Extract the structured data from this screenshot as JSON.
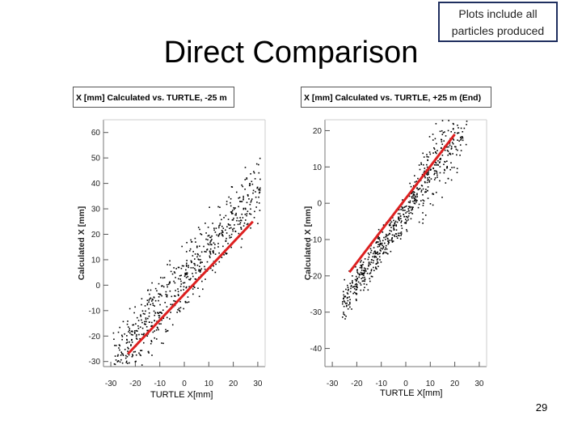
{
  "slide": {
    "title": "Direct Comparison",
    "note": [
      "Plots include all",
      "particles produced"
    ],
    "page_number": "29"
  },
  "chart_data": [
    {
      "type": "scatter",
      "title": "X [mm] Calculated vs. TURTLE, -25 m",
      "xlabel": "TURTLE X[mm]",
      "ylabel": "Calculated X [mm]",
      "xlim": [
        -33,
        33
      ],
      "ylim": [
        -32,
        65
      ],
      "x_ticks": [
        -30,
        -20,
        -10,
        0,
        10,
        20,
        30
      ],
      "y_ticks": [
        -30,
        -20,
        -10,
        0,
        10,
        20,
        30,
        40,
        50,
        60
      ],
      "reference_line": {
        "x": [
          -23,
          28
        ],
        "y": [
          -27,
          25
        ],
        "color": "#dd2020"
      },
      "point_color": "#000000",
      "generator": {
        "x_min": -29,
        "x_max": 31,
        "slope": 1.15,
        "intercept": 3,
        "spread": 13,
        "n": 650
      }
    },
    {
      "type": "scatter",
      "title": "X [mm] Calculated vs. TURTLE, +25 m (End)",
      "xlabel": "TURTLE X[mm]",
      "ylabel": "Calculated X [mm]",
      "xlim": [
        -33,
        33
      ],
      "ylim": [
        -45,
        23
      ],
      "x_ticks": [
        -30,
        -20,
        -10,
        0,
        10,
        20,
        30
      ],
      "y_ticks": [
        -40,
        -30,
        -20,
        -10,
        0,
        10,
        20
      ],
      "reference_line": {
        "x": [
          -23,
          20
        ],
        "y": [
          -19,
          19
        ],
        "color": "#dd2020"
      },
      "point_color": "#000000",
      "generator": {
        "x_min": -26,
        "x_max": 25,
        "slope": 1.0,
        "intercept": -2,
        "spread": 5,
        "n": 650
      }
    }
  ]
}
